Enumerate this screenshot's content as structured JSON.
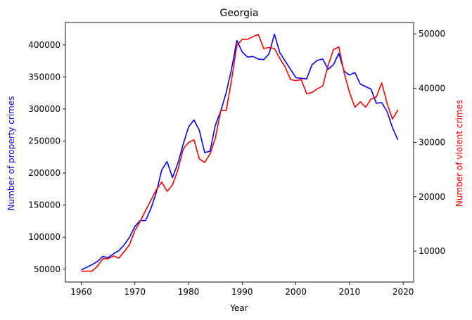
{
  "chart_data": {
    "type": "line",
    "title": "Georgia",
    "xlabel": "Year",
    "ylabel_left": "Number of property crimes",
    "ylabel_right": "Number of violent crimes",
    "xlim": [
      1960,
      2019
    ],
    "x_ticks": [
      1960,
      1970,
      1980,
      1990,
      2000,
      2010,
      2020
    ],
    "ylim_left": [
      30000,
      435000
    ],
    "ylim_right": [
      4300,
      52100
    ],
    "y_ticks_left": [
      50000,
      100000,
      150000,
      200000,
      250000,
      300000,
      350000,
      400000
    ],
    "y_ticks_right": [
      10000,
      20000,
      30000,
      40000,
      50000
    ],
    "grid": false,
    "legend": "none",
    "x": [
      1960,
      1961,
      1962,
      1963,
      1964,
      1965,
      1966,
      1967,
      1968,
      1969,
      1970,
      1971,
      1972,
      1973,
      1974,
      1975,
      1976,
      1977,
      1978,
      1979,
      1980,
      1981,
      1982,
      1983,
      1984,
      1985,
      1986,
      1987,
      1988,
      1989,
      1990,
      1991,
      1992,
      1993,
      1994,
      1995,
      1996,
      1997,
      1998,
      1999,
      2000,
      2001,
      2002,
      2003,
      2004,
      2005,
      2006,
      2007,
      2008,
      2009,
      2010,
      2011,
      2012,
      2013,
      2014,
      2015,
      2016,
      2017,
      2018,
      2019
    ],
    "series": [
      {
        "name": "Number of property crimes",
        "axis": "left",
        "color": "#0000ff",
        "values": [
          49000,
          53000,
          57000,
          62000,
          70000,
          68000,
          74000,
          79000,
          88000,
          100000,
          117000,
          126000,
          126000,
          145000,
          170000,
          205000,
          218000,
          193000,
          215000,
          245000,
          272000,
          283000,
          267000,
          232000,
          234000,
          275000,
          297000,
          325000,
          362000,
          407000,
          389000,
          381000,
          382000,
          378000,
          377000,
          386000,
          417000,
          388000,
          375000,
          362000,
          349000,
          348000,
          347000,
          369000,
          376000,
          378000,
          362000,
          369000,
          387000,
          359000,
          353000,
          357000,
          339000,
          335000,
          331000,
          309000,
          310000,
          296000,
          271000,
          252000
        ]
      },
      {
        "name": "Number of violent crimes",
        "axis": "right",
        "color": "#ff0000",
        "values": [
          6300,
          6300,
          6300,
          7200,
          8600,
          8600,
          9100,
          8700,
          9900,
          11200,
          13800,
          15500,
          17500,
          19400,
          21300,
          22700,
          21000,
          22200,
          24900,
          28800,
          30000,
          30500,
          27000,
          26300,
          27900,
          30800,
          35900,
          35900,
          41400,
          47900,
          49000,
          49000,
          49500,
          49900,
          47300,
          47500,
          47300,
          45500,
          43900,
          41600,
          41400,
          41600,
          39000,
          39200,
          39900,
          40400,
          44200,
          47100,
          47600,
          42800,
          39200,
          36500,
          37500,
          36500,
          38000,
          38400,
          41000,
          37200,
          34300,
          36000
        ]
      }
    ]
  }
}
